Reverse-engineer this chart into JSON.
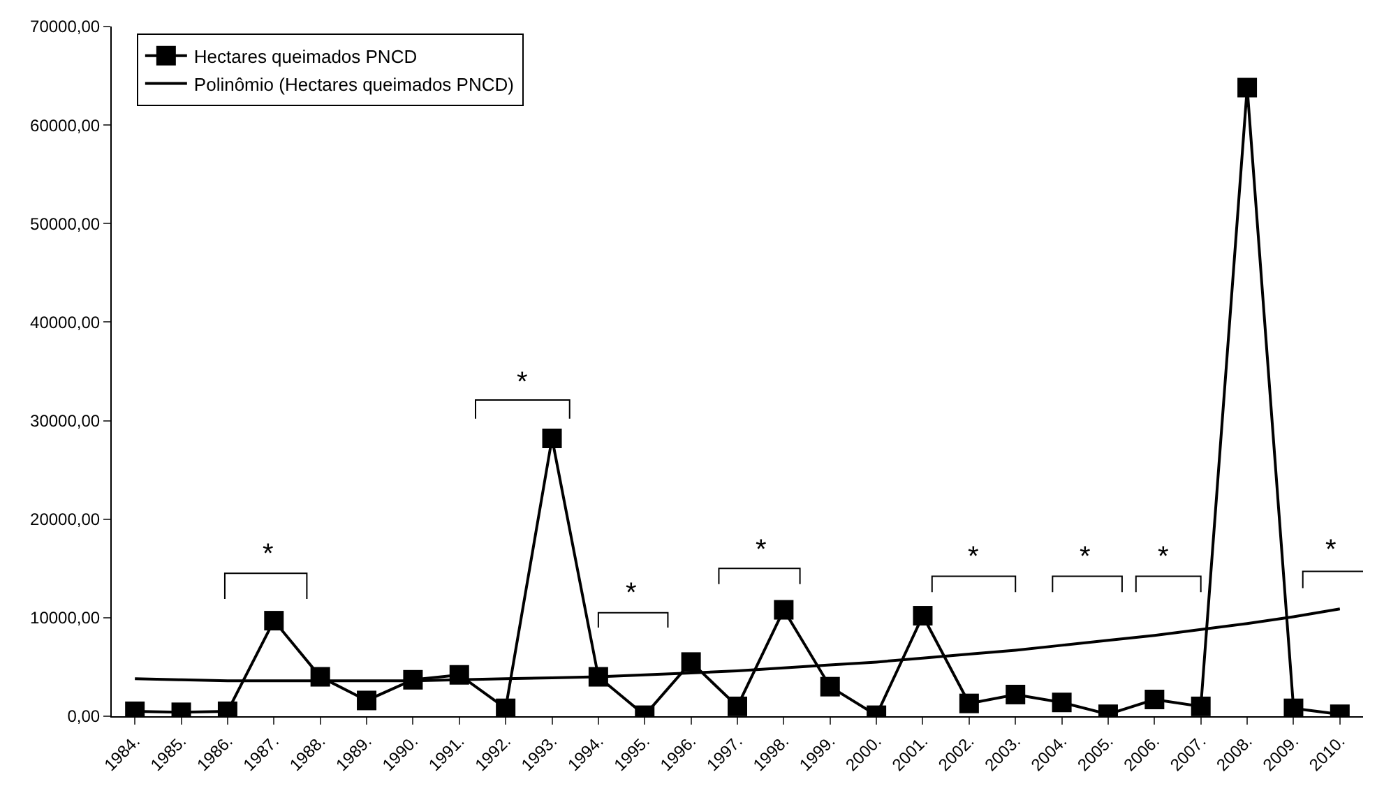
{
  "chart_data": {
    "type": "line",
    "categories": [
      "1984.",
      "1985.",
      "1986.",
      "1987.",
      "1988.",
      "1989.",
      "1990.",
      "1991.",
      "1992.",
      "1993.",
      "1994.",
      "1995.",
      "1996.",
      "1997.",
      "1998.",
      "1999.",
      "2000.",
      "2001.",
      "2002.",
      "2003.",
      "2004.",
      "2005.",
      "2006.",
      "2007.",
      "2008.",
      "2009.",
      "2010."
    ],
    "series": [
      {
        "name": "Hectares queimados PNCD",
        "color": "#000000",
        "marker": "square",
        "values": [
          500,
          400,
          500,
          9700,
          4000,
          1600,
          3700,
          4200,
          800,
          28200,
          4000,
          100,
          5500,
          1000,
          10800,
          3000,
          100,
          10200,
          1300,
          2200,
          1400,
          200,
          1700,
          1000,
          63800,
          800,
          200
        ]
      },
      {
        "name": "Polinômio (Hectares queimados PNCD)",
        "color": "#000000",
        "marker": "none",
        "values": [
          3800,
          3700,
          3600,
          3600,
          3600,
          3600,
          3600,
          3700,
          3800,
          3900,
          4000,
          4200,
          4400,
          4600,
          4900,
          5200,
          5500,
          5900,
          6300,
          6700,
          7200,
          7700,
          8200,
          8800,
          9400,
          10100,
          10900
        ]
      }
    ],
    "ylim": [
      0,
      70000
    ],
    "yticks": [
      {
        "value": 0,
        "label": "0,00"
      },
      {
        "value": 10000,
        "label": "10000,00"
      },
      {
        "value": 20000,
        "label": "20000,00"
      },
      {
        "value": 30000,
        "label": "30000,00"
      },
      {
        "value": 40000,
        "label": "40000,00"
      },
      {
        "value": 50000,
        "label": "50000,00"
      },
      {
        "value": 60000,
        "label": "60000,00"
      },
      {
        "value": 70000,
        "label": "70000,00"
      }
    ],
    "annotations": [
      "*",
      "*",
      "*",
      "*",
      "*",
      "*",
      "*",
      "*"
    ],
    "legend": "top left",
    "line_style": "solid"
  }
}
